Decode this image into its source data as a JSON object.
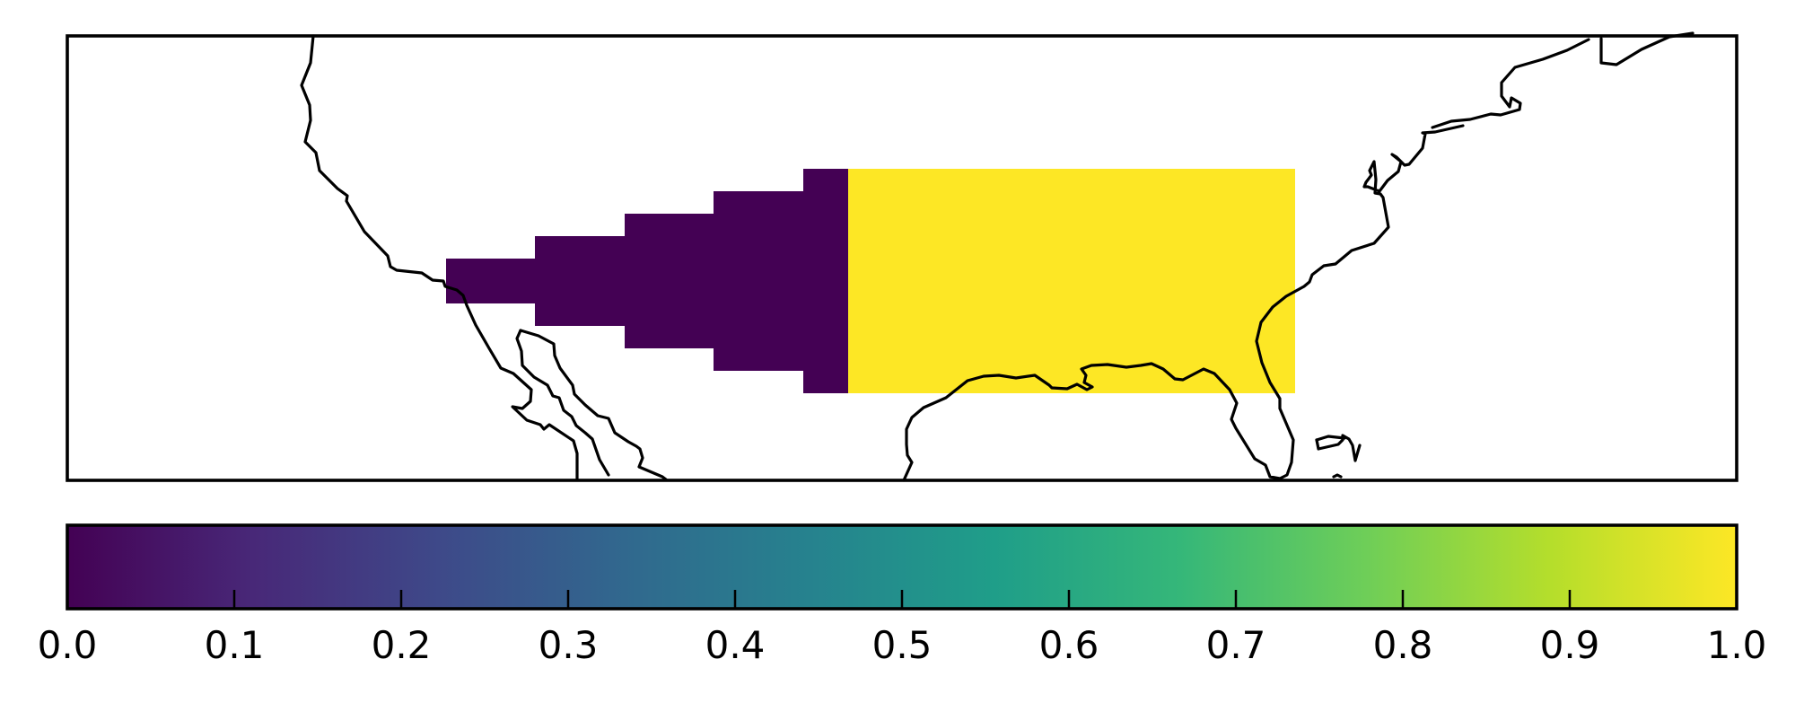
{
  "map": {
    "projection": "equirectangular",
    "region": "contiguous United States and northern Mexico",
    "coastline_color": "#000000",
    "background_color": "#ffffff"
  },
  "chart_data": {
    "type": "heatmap",
    "title": "",
    "xlabel": "",
    "ylabel": "",
    "colormap": "viridis",
    "vmin": 0.0,
    "vmax": 1.0,
    "cells": [
      {
        "region": "western stepped block",
        "value": 0.0,
        "color": "#440154"
      },
      {
        "region": "eastern rectangular block",
        "value": 1.0,
        "color": "#fde725"
      }
    ]
  },
  "colorbar": {
    "orientation": "horizontal",
    "min": 0.0,
    "max": 1.0,
    "ticks": [
      0.0,
      0.1,
      0.2,
      0.3,
      0.4,
      0.5,
      0.6,
      0.7,
      0.8,
      0.9,
      1.0
    ],
    "tick_labels": [
      "0.0",
      "0.1",
      "0.2",
      "0.3",
      "0.4",
      "0.5",
      "0.6",
      "0.7",
      "0.8",
      "0.9",
      "1.0"
    ],
    "stops": [
      "#440154",
      "#482878",
      "#3e4989",
      "#31688e",
      "#26828e",
      "#1f9e89",
      "#35b779",
      "#6ece58",
      "#b5de2b",
      "#fde725"
    ]
  }
}
